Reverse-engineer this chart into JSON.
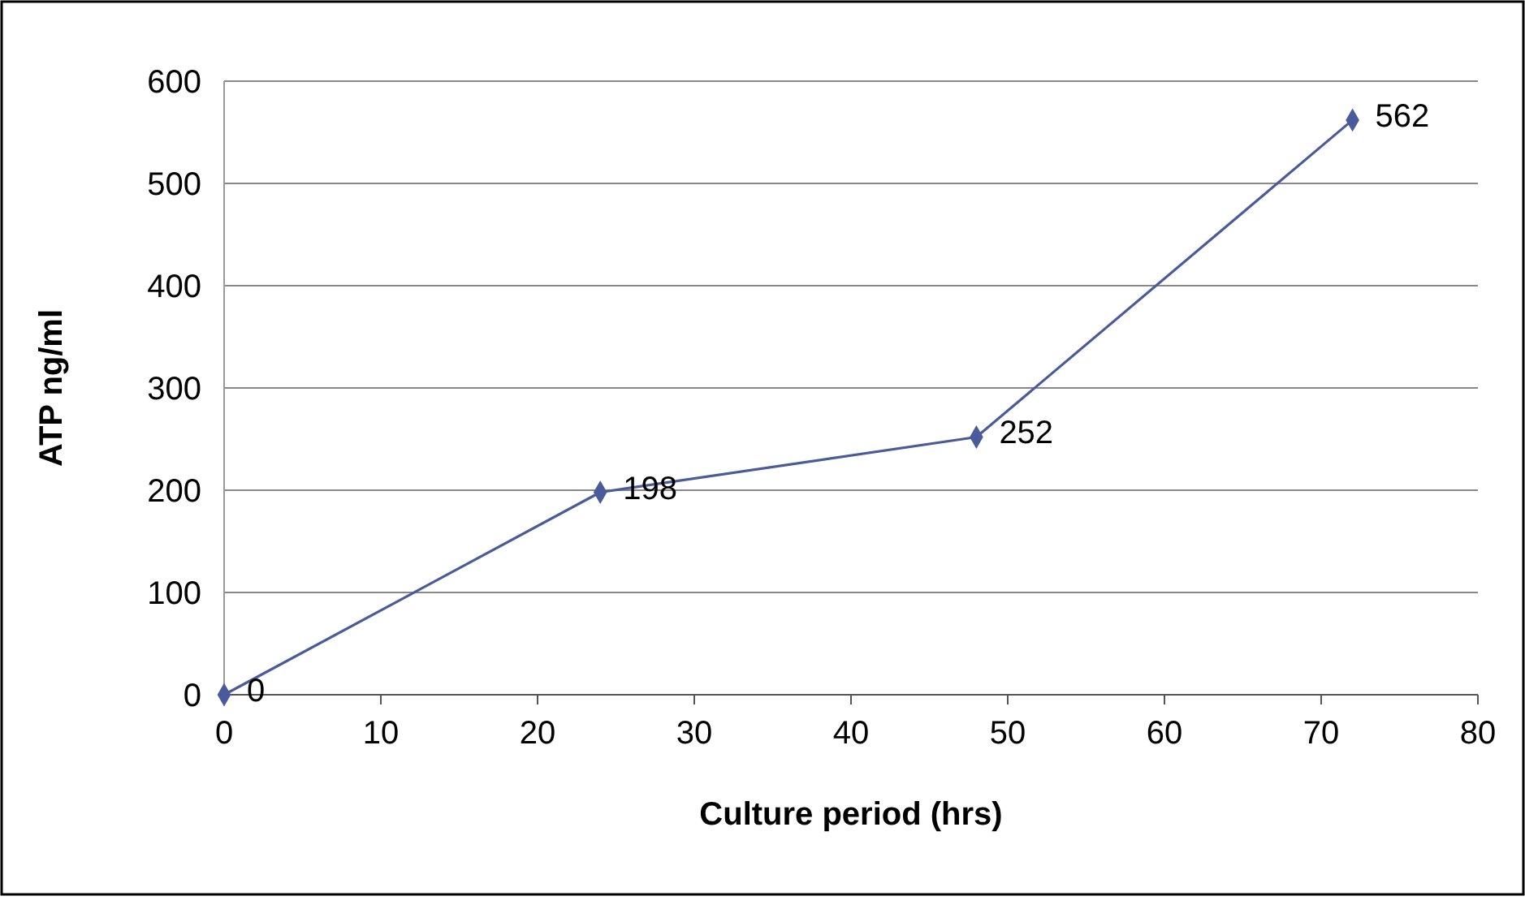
{
  "chart_data": {
    "type": "line",
    "xlabel": "Culture period (hrs)",
    "ylabel": "ATP ng/ml",
    "x": [
      0,
      24,
      48,
      72
    ],
    "series": [
      {
        "color": "#4a5b9c",
        "values": [
          0,
          198,
          252,
          562
        ]
      }
    ],
    "xlim": [
      0,
      80
    ],
    "xticks": [
      0,
      10,
      20,
      30,
      40,
      50,
      60,
      70,
      80
    ],
    "ylim": [
      0,
      600
    ],
    "yticks": [
      0,
      100,
      200,
      300,
      400,
      500,
      600
    ],
    "grid": "y",
    "marker": "diamond",
    "line_style": "solid",
    "data_labels": true
  }
}
